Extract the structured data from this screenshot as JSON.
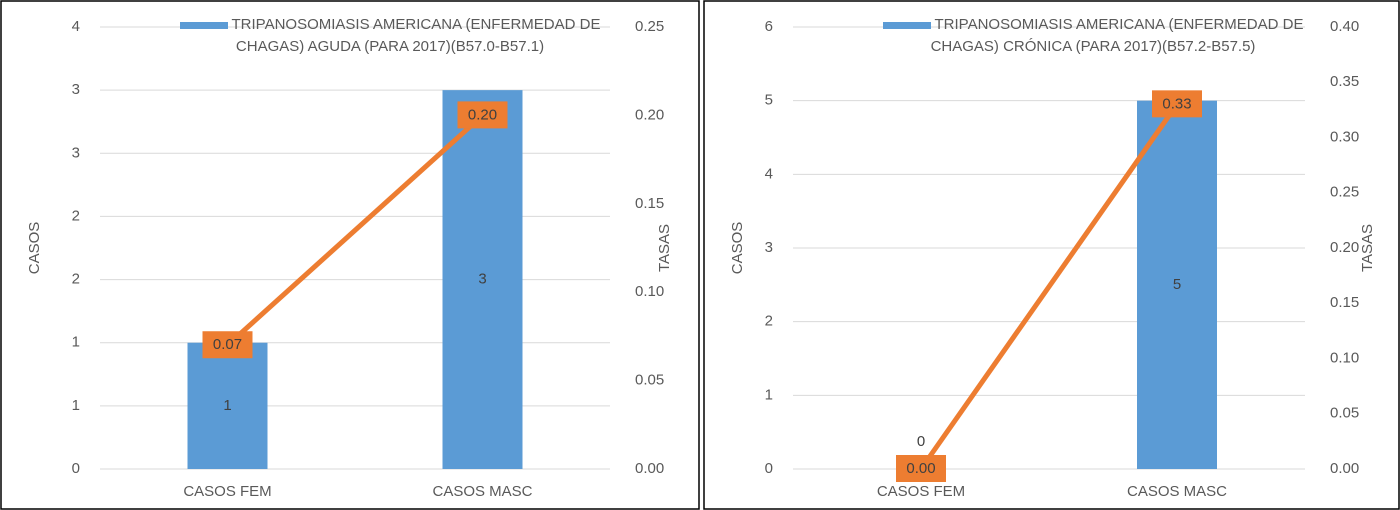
{
  "chart_data": [
    {
      "type": "bar",
      "y_label": "CASOS",
      "y2_label": "TASAS",
      "categories": [
        "CASOS FEM",
        "CASOS MASC"
      ],
      "series": [
        {
          "name": "TRIPANOSOMIASIS AMERICANA (ENFERMEDAD DE CHAGAS) AGUDA (PARA 2017)(B57.0-B57.1)",
          "type": "bar",
          "color": "#5b9bd5",
          "values": [
            1,
            3
          ]
        },
        {
          "type": "line",
          "axis": "y2",
          "color": "#ed7d31",
          "values": [
            0.07,
            0.2
          ],
          "value_labels": [
            "0.07",
            "0.20"
          ]
        }
      ],
      "ylim": [
        0,
        3.5
      ],
      "yticks": [
        0,
        {
          "value": 0.5,
          "label": "1"
        },
        1,
        {
          "value": 1.5,
          "label": "2"
        },
        2,
        {
          "value": 2.5,
          "label": "3"
        },
        3,
        {
          "value": 3.5,
          "label": "4"
        }
      ],
      "y2lim": [
        0,
        0.25
      ],
      "y2ticks": [
        {
          "value": 0,
          "label": "0.00"
        },
        {
          "value": 0.05,
          "label": "0.05"
        },
        {
          "value": 0.1,
          "label": "0.10"
        },
        {
          "value": 0.15,
          "label": "0.15"
        },
        {
          "value": 0.2,
          "label": "0.20"
        },
        {
          "value": 0.25,
          "label": "0.25"
        }
      ],
      "grid": true
    },
    {
      "type": "bar",
      "y_label": "CASOS",
      "y2_label": "TASAS",
      "categories": [
        "CASOS FEM",
        "CASOS MASC"
      ],
      "series": [
        {
          "name": "TRIPANOSOMIASIS AMERICANA (ENFERMEDAD DE CHAGAS) CRÓNICA (PARA 2017)(B57.2-B57.5)",
          "type": "bar",
          "color": "#5b9bd5",
          "values": [
            0,
            5
          ]
        },
        {
          "type": "line",
          "axis": "y2",
          "color": "#ed7d31",
          "values": [
            0,
            0.33
          ],
          "value_labels": [
            "0.00",
            "0.33"
          ]
        }
      ],
      "ylim": [
        0,
        6
      ],
      "yticks": [
        0,
        1,
        2,
        3,
        4,
        5,
        6
      ],
      "y2lim": [
        0,
        0.4
      ],
      "y2ticks": [
        {
          "value": 0,
          "label": "0.00"
        },
        {
          "value": 0.05,
          "label": "0.05"
        },
        {
          "value": 0.1,
          "label": "0.10"
        },
        {
          "value": 0.15,
          "label": "0.15"
        },
        {
          "value": 0.2,
          "label": "0.20"
        },
        {
          "value": 0.25,
          "label": "0.25"
        },
        {
          "value": 0.3,
          "label": "0.30"
        },
        {
          "value": 0.35,
          "label": "0.35"
        },
        {
          "value": 0.4,
          "label": "0.40"
        }
      ],
      "grid": true
    }
  ]
}
